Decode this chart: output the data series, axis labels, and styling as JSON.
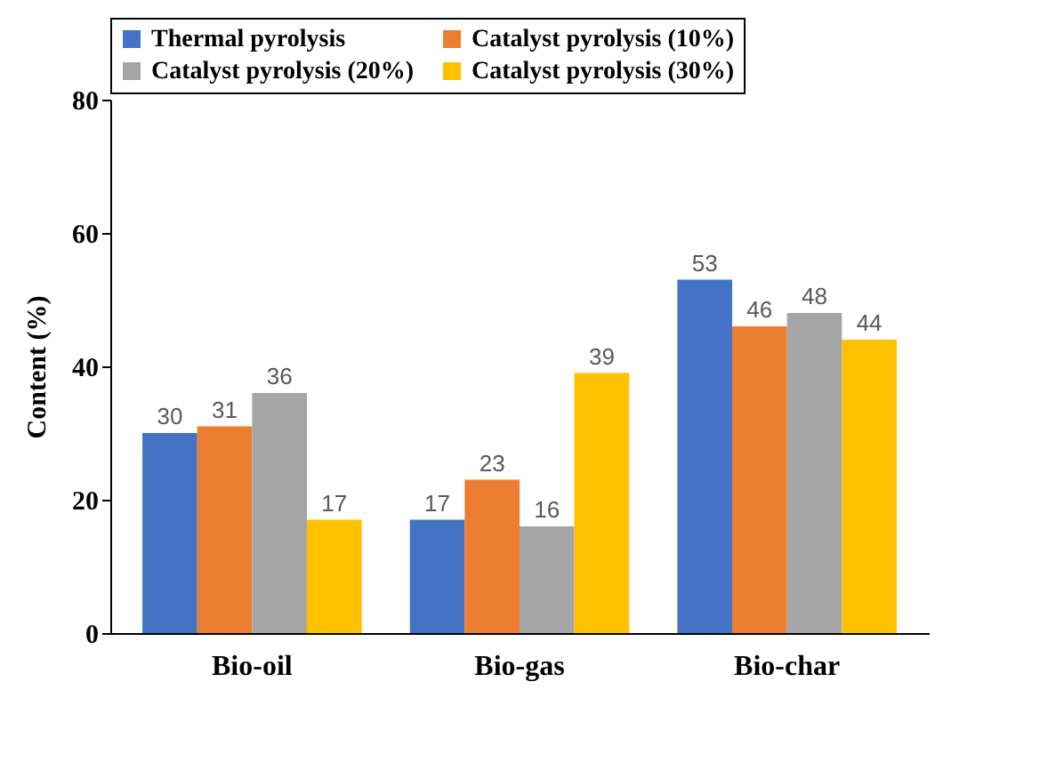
{
  "chart_data": {
    "type": "bar",
    "ylabel": "Content (%)",
    "categories": [
      "Bio-oil",
      "Bio-gas",
      "Bio-char"
    ],
    "series": [
      {
        "name": "Thermal pyrolysis",
        "color": "#4472c4",
        "values": [
          30,
          17,
          53
        ]
      },
      {
        "name": "Catalyst pyrolysis (10%)",
        "color": "#ed7d31",
        "values": [
          31,
          23,
          46
        ]
      },
      {
        "name": "Catalyst pyrolysis (20%)",
        "color": "#a5a5a5",
        "values": [
          36,
          16,
          48
        ]
      },
      {
        "name": "Catalyst pyrolysis (30%)",
        "color": "#ffc000",
        "values": [
          17,
          39,
          44
        ]
      }
    ],
    "ylim": [
      0,
      80
    ],
    "yticks": [
      0,
      20,
      40,
      60,
      80
    ],
    "data_labels": true,
    "legend": "top",
    "grid": false
  }
}
